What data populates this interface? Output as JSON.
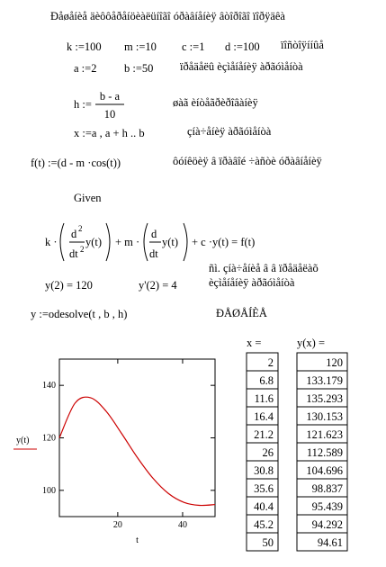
{
  "worksheet": {
    "title": "Ðåøåíèå äèôôåðåíöèàëüíîãî óðàâíåíèÿ âòîðîãî ïîðÿäêà",
    "k": "k :=100",
    "m": "m :=10",
    "c": "c :=1",
    "d": "d :=100",
    "constants_note": "ïîñòîÿííûå",
    "a": "a :=2",
    "b": "b :=50",
    "limits_note": "ïðåäåëû èçìåíåíèÿ àðãóìåíòà",
    "h_lhs": "h :=",
    "h_num": "b - a",
    "h_den": "10",
    "step_note": "øàã èíòåãðèðîâàíèÿ",
    "x_def": "x :=a , a + h .. b",
    "x_note": "çíà÷åíèÿ àðãóìåíòà",
    "f_def": "f(t) :=(d - m ·cos(t))",
    "f_note": "ôóíêöèÿ â ïðàâîé ÷àñòè óðàâíåíèÿ",
    "given": "Given",
    "ode": {
      "k": "k ·",
      "d1": "d",
      "p1": "2",
      "dt1": "dt",
      "p2": "2",
      "y1": "y(t)",
      "m": "+ m ·",
      "d2": "d",
      "dt2": "dt",
      "y2": "y(t)",
      "rest": "+ c ·y(t) = f(t)"
    },
    "ic1": "y(2) = 120",
    "ic2": "y'(2) = 4",
    "ic_note": [
      "ñì. çíà÷åíèå â â ïðåäåëàõ",
      "èçìåíåíèÿ àðãóìåíòà"
    ],
    "solve": "y :=odesolve(t , b , h)",
    "solution_note": "ÐÅØÅÍÈÅ",
    "x_header": "x =",
    "y_header": "y(x) ="
  },
  "chart_data": {
    "type": "line",
    "x": [
      2,
      6.8,
      11.6,
      16.4,
      21.2,
      26,
      30.8,
      35.6,
      40.4,
      45.2,
      50
    ],
    "series": [
      {
        "name": "y(t)",
        "color": "#cc0000",
        "values": [
          120,
          133.179,
          135.293,
          130.153,
          121.623,
          112.589,
          104.696,
          98.837,
          95.439,
          94.292,
          94.61
        ]
      }
    ],
    "x_label": "t",
    "xlim": [
      2,
      50
    ],
    "ylim": [
      90,
      150
    ],
    "xticks": [
      20,
      40
    ],
    "yticks": [
      100,
      120,
      140
    ]
  }
}
